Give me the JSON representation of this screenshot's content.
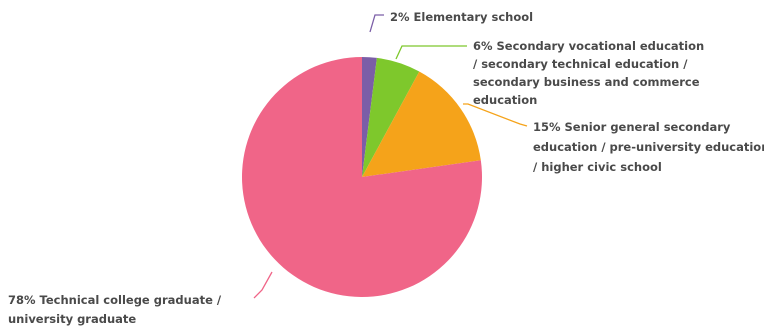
{
  "chart_data": {
    "type": "pie",
    "title": "",
    "start_angle_deg": 0,
    "direction": "clockwise",
    "legend": "none",
    "slices": [
      {
        "label": "Elementary school",
        "value": 2,
        "display": "2%",
        "color": "#7b5ea7",
        "label_lines": [
          "2% Elementary school"
        ]
      },
      {
        "label": "Secondary vocational education / secondary technical education / secondary business and commerce education",
        "value": 6,
        "display": "6%",
        "color": "#7ec82c",
        "label_lines": [
          "6% Secondary vocational education",
          "/ secondary technical education /",
          "secondary business and commerce",
          "education"
        ]
      },
      {
        "label": "Senior general secondary education / pre-university education / higher civic school",
        "value": 15,
        "display": "15%",
        "color": "#f5a31a",
        "label_lines": [
          "15% Senior general secondary",
          "education / pre-university education",
          "/ higher civic school"
        ]
      },
      {
        "label": "Technical college graduate / university graduate",
        "value": 78,
        "display": "78%",
        "color": "#f06588",
        "label_lines": [
          "78% Technical college graduate /",
          "university graduate"
        ]
      }
    ]
  }
}
